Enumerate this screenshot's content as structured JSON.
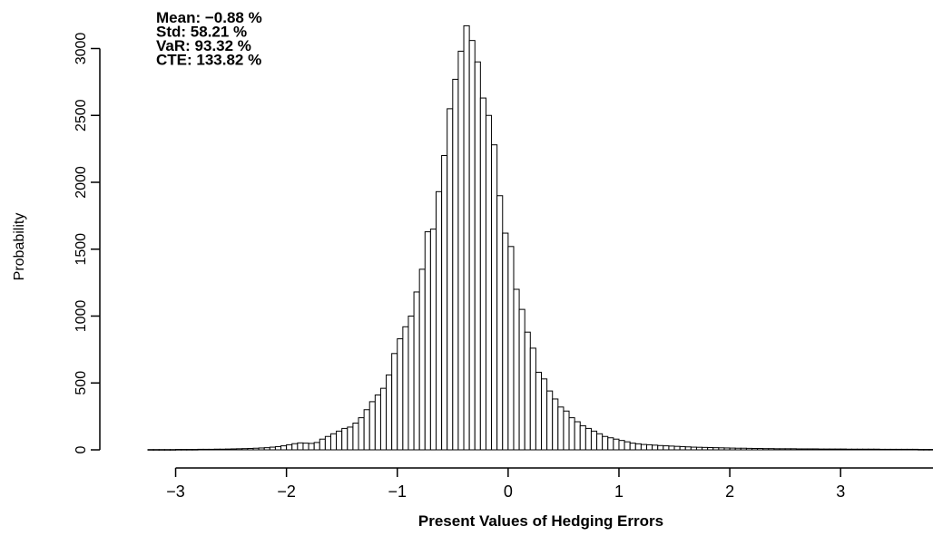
{
  "chart_data": {
    "type": "bar",
    "title": "",
    "xlabel": "Present Values of Hedging Errors",
    "ylabel": "Probability",
    "xlim": [
      -3.25,
      3.85
    ],
    "ylim": [
      0,
      3200
    ],
    "xticks": [
      -3,
      -2,
      -1,
      0,
      1,
      2,
      3,
      4
    ],
    "yticks": [
      0,
      500,
      1000,
      1500,
      2000,
      2500,
      3000
    ],
    "bin_width": 0.05,
    "bin_start": -3.25,
    "stats": [
      {
        "label": "Mean:",
        "value": "−0.88 %"
      },
      {
        "label": "Std:",
        "value": "58.21 %"
      },
      {
        "label": "VaR:",
        "value": "93.32 %"
      },
      {
        "label": "CTE:",
        "value": "133.82 %"
      }
    ],
    "values": [
      2,
      2,
      2,
      2,
      2,
      3,
      3,
      3,
      3,
      4,
      4,
      4,
      5,
      5,
      6,
      7,
      8,
      9,
      10,
      12,
      14,
      16,
      20,
      24,
      30,
      38,
      46,
      52,
      50,
      48,
      55,
      80,
      100,
      120,
      140,
      160,
      170,
      200,
      240,
      300,
      360,
      410,
      460,
      560,
      720,
      830,
      920,
      1000,
      1180,
      1350,
      1630,
      1650,
      1930,
      2200,
      2550,
      2770,
      2980,
      3170,
      3060,
      2900,
      2630,
      2500,
      2280,
      1900,
      1620,
      1520,
      1200,
      1050,
      880,
      760,
      580,
      530,
      440,
      380,
      320,
      290,
      240,
      210,
      180,
      160,
      140,
      120,
      100,
      90,
      80,
      70,
      60,
      50,
      45,
      40,
      38,
      35,
      32,
      30,
      28,
      26,
      24,
      22,
      20,
      19,
      18,
      17,
      16,
      15,
      14,
      13,
      12,
      12,
      11,
      10,
      10,
      9,
      9,
      8,
      8,
      8,
      8,
      7,
      7,
      7,
      7,
      6,
      6,
      6,
      6,
      6,
      5,
      5,
      5,
      5,
      5,
      5,
      4,
      4,
      4,
      4,
      4,
      4,
      4,
      3,
      3,
      3,
      3,
      3,
      3,
      3,
      3
    ]
  }
}
